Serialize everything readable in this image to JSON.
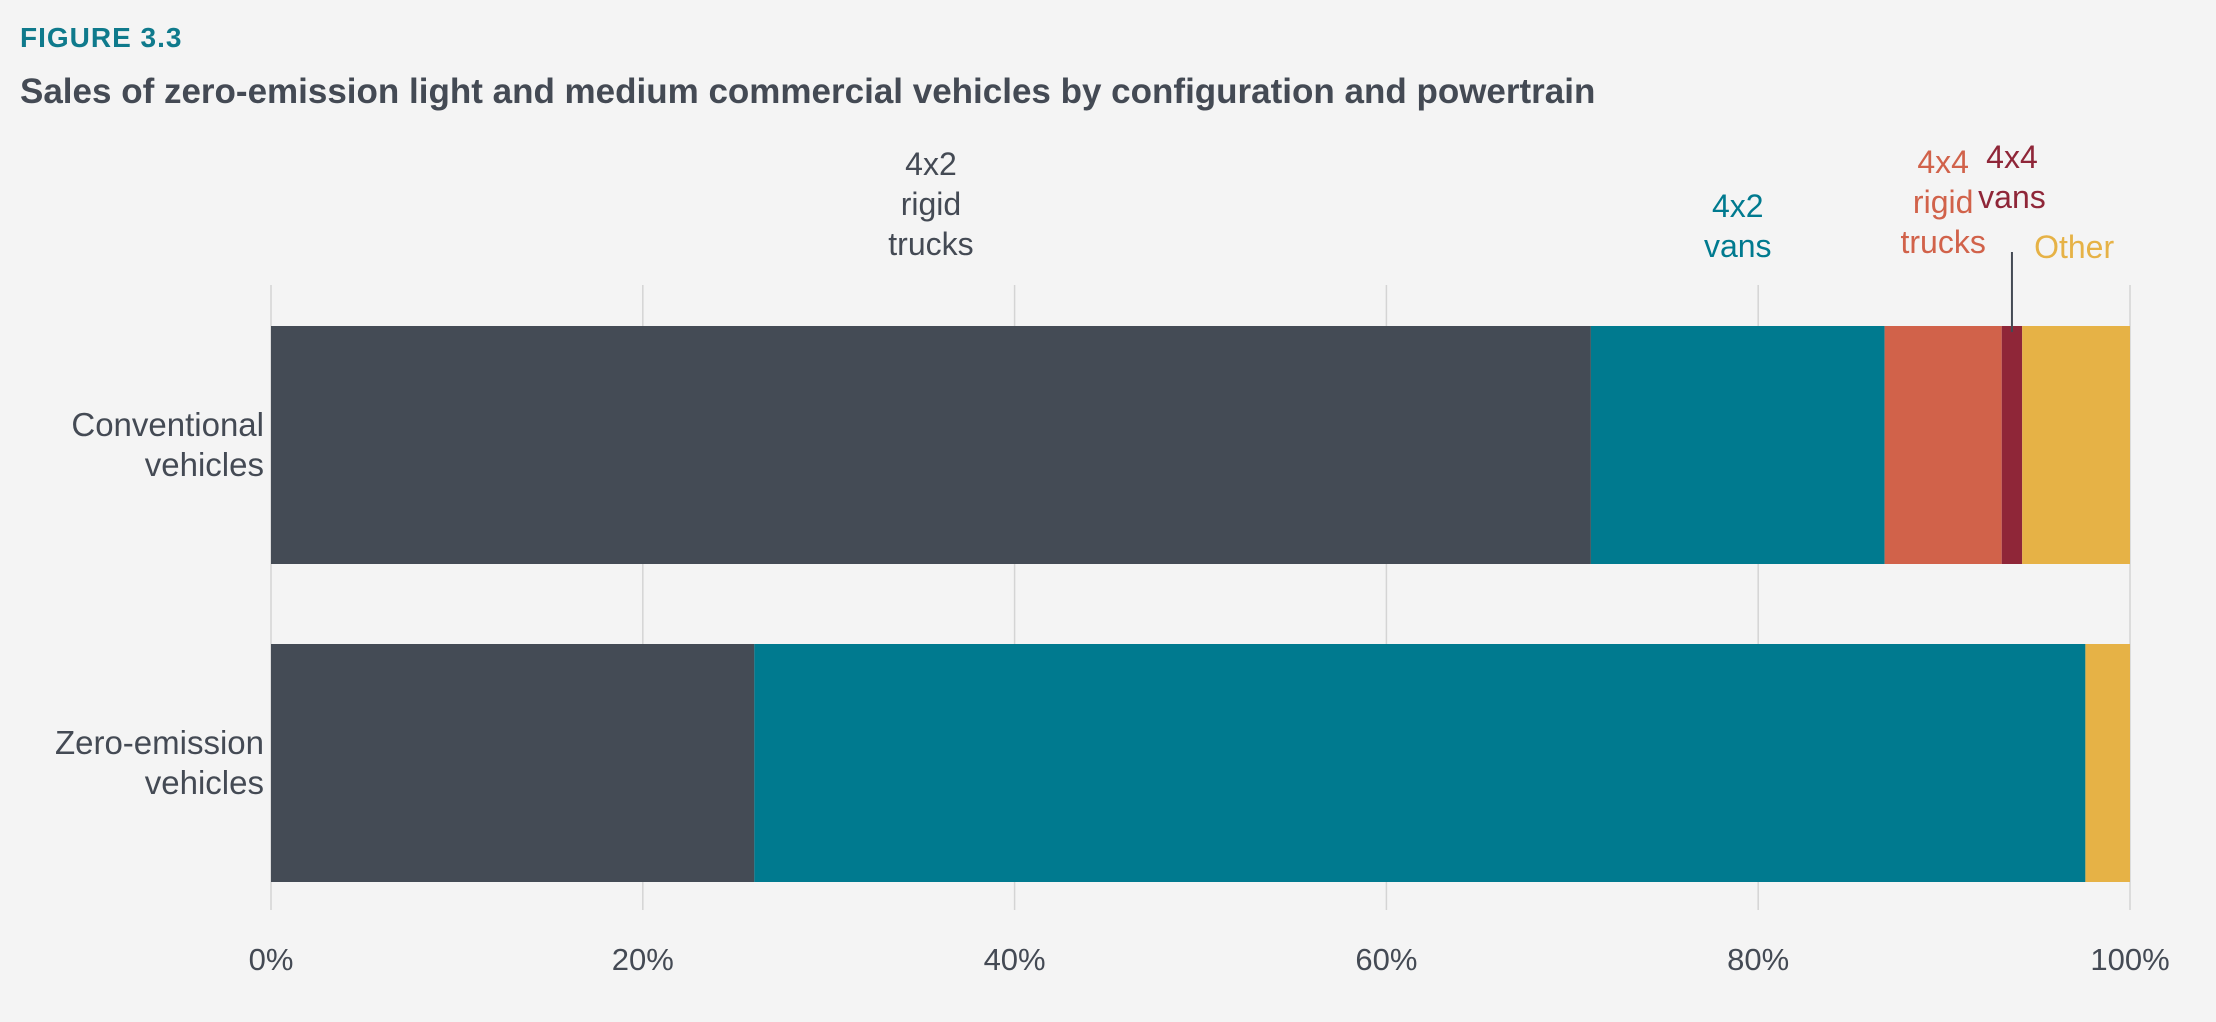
{
  "figure_label": "FIGURE 3.3",
  "title": "Sales of zero-emission light and medium commercial vehicles by configuration and powertrain",
  "chart_data": {
    "type": "bar",
    "orientation": "horizontal",
    "stacked": true,
    "normalized": true,
    "categories": [
      "Conventional vehicles",
      "Zero-emission vehicles"
    ],
    "category_label_lines": [
      [
        "Conventional",
        "vehicles"
      ],
      [
        "Zero-emission",
        "vehicles"
      ]
    ],
    "series": [
      {
        "name": "4x2 rigid trucks",
        "label_lines": [
          "4x2",
          "rigid",
          "trucks"
        ],
        "color": "#444b55",
        "values": [
          71,
          26
        ]
      },
      {
        "name": "4x2 vans",
        "label_lines": [
          "4x2",
          "vans"
        ],
        "color": "#007a8f",
        "values": [
          15.8,
          71.6
        ]
      },
      {
        "name": "4x4 rigid trucks",
        "label_lines": [
          "4x4",
          "rigid",
          "trucks"
        ],
        "color": "#d1624a",
        "values": [
          6.3,
          0
        ]
      },
      {
        "name": "4x4 vans",
        "label_lines": [
          "4x4",
          "vans"
        ],
        "color": "#8f2638",
        "values": [
          1.1,
          0
        ]
      },
      {
        "name": "Other",
        "label_lines": [
          "Other"
        ],
        "color": "#e6b246",
        "values": [
          5.8,
          2.4
        ]
      }
    ],
    "xlim": [
      0,
      100
    ],
    "x_ticks": [
      "0%",
      "20%",
      "40%",
      "60%",
      "80%",
      "100%"
    ],
    "grid": "vertical",
    "legend": "labels above bars"
  }
}
